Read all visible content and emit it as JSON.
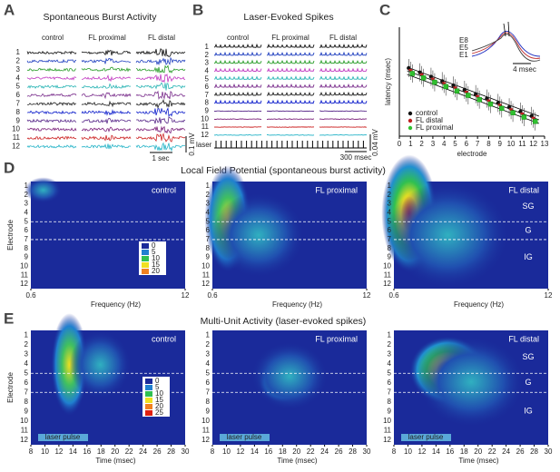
{
  "panels": {
    "A": {
      "label": "A",
      "title": "Spontaneous Burst Activity",
      "columns": [
        "control",
        "FL proximal",
        "FL distal"
      ],
      "rows": [
        "1",
        "2",
        "3",
        "4",
        "5",
        "6",
        "7",
        "8",
        "9",
        "10",
        "11",
        "12"
      ],
      "scale_y": "0.1 mV",
      "scale_x": "1 sec"
    },
    "B": {
      "label": "B",
      "title": "Laser-Evoked Spikes",
      "columns": [
        "control",
        "FL proximal",
        "FL distal"
      ],
      "rows": [
        "1",
        "2",
        "3",
        "4",
        "5",
        "6",
        "7",
        "8",
        "9",
        "10",
        "11",
        "12"
      ],
      "scale_y": "0.04 mV",
      "scale_x": "300 msec",
      "stimulus": "laser"
    },
    "C": {
      "label": "C",
      "y_label": "latency (msec)",
      "x_label": "electrode",
      "x_ticks": [
        "0",
        "1",
        "2",
        "3",
        "4",
        "5",
        "6",
        "7",
        "8",
        "9",
        "10",
        "11",
        "12",
        "13"
      ],
      "legend": [
        "control",
        "FL distal",
        "FL proximal"
      ],
      "inset": {
        "traces": [
          "E8",
          "E5",
          "E1"
        ],
        "scale": "4 msec"
      }
    },
    "D": {
      "label": "D",
      "title": "Local Field Potential (spontaneous burst activity)",
      "maps": [
        "control",
        "FL proximal",
        "FL distal"
      ],
      "layers": [
        "SG",
        "G",
        "IG"
      ],
      "y_label": "Electrode",
      "y_ticks": [
        "1",
        "2",
        "3",
        "4",
        "5",
        "6",
        "7",
        "8",
        "9",
        "10",
        "11",
        "12"
      ],
      "x_ticks": [
        "0.6",
        "12"
      ],
      "x_label": "Frequency (Hz)",
      "colorbar": [
        "0",
        "5",
        "10",
        "15",
        "20"
      ]
    },
    "E": {
      "label": "E",
      "title": "Multi-Unit Activity (laser-evoked spikes)",
      "maps": [
        "control",
        "FL proximal",
        "FL distal"
      ],
      "layers": [
        "SG",
        "G",
        "IG"
      ],
      "y_label": "Electrode",
      "y_ticks": [
        "1",
        "2",
        "3",
        "4",
        "5",
        "6",
        "7",
        "8",
        "9",
        "10",
        "11",
        "12"
      ],
      "x_ticks": [
        "8",
        "10",
        "12",
        "14",
        "16",
        "18",
        "20",
        "22",
        "24",
        "26",
        "28",
        "30"
      ],
      "x_label": "Time (msec)",
      "stimulus": "laser pulse",
      "colorbar": [
        "0",
        "5",
        "10",
        "15",
        "20",
        "25"
      ]
    }
  }
}
